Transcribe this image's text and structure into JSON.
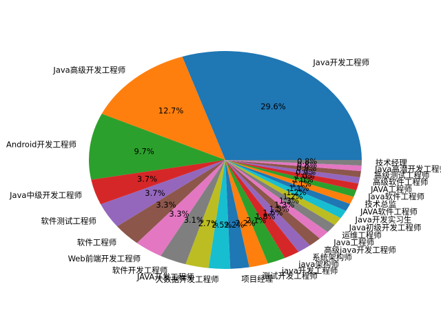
{
  "chart_data": {
    "type": "pie",
    "categories": [
      "Java开发工程师",
      "Java高级开发工程师",
      "Android开发工程师",
      "Java中级开发工程师",
      "软件测试工程师",
      "软件工程师",
      "Web前端开发工程师",
      "软件开发工程师",
      "JAVA开发工程师",
      "大数据开发工程师",
      "项目经理",
      "测试开发工程师",
      "java开发工程师",
      "java架构师",
      "系统架构师",
      "高级java开发工程师",
      "Java工程师",
      "运维工程师",
      "Java初级开发工程师",
      "Java开发实习生",
      "JAVA软件工程师",
      "技术总监",
      "Java软件工程师",
      "JAVA工程师",
      "高级软件工程师",
      "高级测试工程师",
      "Java高潜开发工程师",
      "技术经理"
    ],
    "values": [
      29.6,
      12.7,
      9.7,
      3.7,
      3.7,
      3.3,
      3.3,
      3.1,
      2.7,
      2.5,
      2.2,
      2.2,
      2.1,
      1.8,
      1.6,
      1.5,
      1.3,
      1.3,
      1.2,
      1.2,
      1.1,
      1.1,
      1.0,
      1.0,
      0.9,
      0.9,
      0.8,
      0.8
    ],
    "value_labels": [
      "29.6%",
      "12.7%",
      "9.7%",
      "3.7%",
      "3.7%",
      "3.3%",
      "3.3%",
      "3.1%",
      "2.7%",
      "2.5%",
      "2.2%",
      "2.2%",
      "2.1%",
      "1.8%",
      "1.6%",
      "1.5%",
      "1.3%",
      "1.3%",
      "1.2%",
      "1.2%",
      "1.1%",
      "1.1%",
      "1.0%",
      "1.0%",
      "0.9%",
      "0.9%",
      "0.8%",
      "0.8%"
    ],
    "colors": [
      "#1f77b4",
      "#ff7f0e",
      "#2ca02c",
      "#d62728",
      "#9467bd",
      "#8c564b",
      "#e377c2",
      "#7f7f7f",
      "#bcbd22",
      "#17becf",
      "#1f77b4",
      "#ff7f0e",
      "#2ca02c",
      "#d62728",
      "#9467bd",
      "#8c564b",
      "#e377c2",
      "#7f7f7f",
      "#bcbd22",
      "#17becf",
      "#1f77b4",
      "#ff7f0e",
      "#2ca02c",
      "#d62728",
      "#9467bd",
      "#8c564b",
      "#e377c2",
      "#7f7f7f"
    ]
  }
}
